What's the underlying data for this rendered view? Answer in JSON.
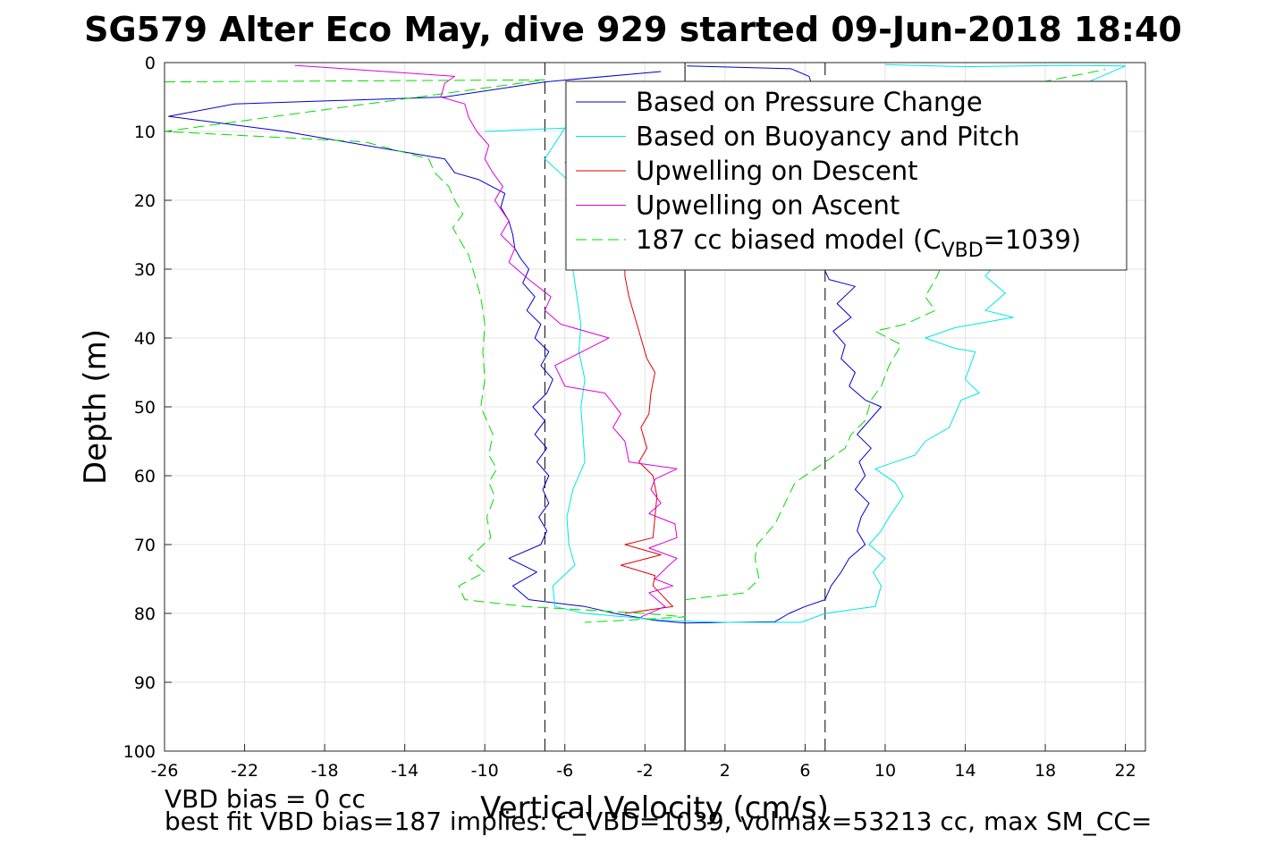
{
  "chart_data": {
    "type": "line",
    "title": "SG579 Alter Eco May, dive 929 started 09-Jun-2018 18:40",
    "xlabel": "Vertical Velocity (cm/s)",
    "ylabel": "Depth (m)",
    "xlim": [
      -26,
      23
    ],
    "ylim": [
      0,
      100
    ],
    "y_reversed": true,
    "grid": true,
    "xticks": [
      -26,
      -22,
      -18,
      -14,
      -10,
      -6,
      -2,
      2,
      6,
      10,
      14,
      18,
      22
    ],
    "yticks": [
      0,
      10,
      20,
      30,
      40,
      50,
      60,
      70,
      80,
      90,
      100
    ],
    "legend_position": "top-right",
    "legend": [
      {
        "label": "Based on Pressure Change",
        "color": "#0000cc",
        "dash": "solid"
      },
      {
        "label": "Based on Buoyancy and Pitch",
        "color": "#00e5e5",
        "dash": "solid"
      },
      {
        "label": "Upwelling on Descent",
        "color": "#e00000",
        "dash": "solid"
      },
      {
        "label": "Upwelling on Ascent",
        "color": "#dd00dd",
        "dash": "solid"
      },
      {
        "label_prefix": "187 cc biased model (C",
        "label_sub": "VBD",
        "label_suffix": "=1039)",
        "color": "#00dd00",
        "dash": "dashed"
      }
    ],
    "reference_lines": [
      {
        "x": -7,
        "style": "dashed",
        "color": "#000000"
      },
      {
        "x": 0,
        "style": "solid",
        "color": "#000000"
      },
      {
        "x": 7,
        "style": "dashed",
        "color": "#000000"
      }
    ],
    "series": [
      {
        "color": "#0000cc",
        "dash": "solid",
        "points": [
          [
            -1.2,
            1.3
          ],
          [
            -7,
            2.8
          ],
          [
            -12,
            5
          ],
          [
            -22.5,
            6
          ],
          [
            -25.8,
            7.8
          ],
          [
            -20,
            10
          ],
          [
            -16,
            12
          ],
          [
            -12,
            14
          ],
          [
            -11.5,
            16
          ],
          [
            -10.3,
            17
          ],
          [
            -9,
            19
          ],
          [
            -9.2,
            21
          ],
          [
            -8.8,
            23
          ],
          [
            -8.6,
            25
          ],
          [
            -8.5,
            27
          ],
          [
            -8.2,
            28.5
          ],
          [
            -7.8,
            30
          ],
          [
            -8.1,
            32
          ],
          [
            -7.5,
            34
          ],
          [
            -7.9,
            36
          ],
          [
            -7.2,
            38
          ],
          [
            -7.5,
            40
          ],
          [
            -6.8,
            42
          ],
          [
            -7.2,
            44
          ],
          [
            -6.6,
            46
          ],
          [
            -6.9,
            48
          ],
          [
            -7.6,
            50
          ],
          [
            -7,
            52
          ],
          [
            -7.5,
            54
          ],
          [
            -6.9,
            56
          ],
          [
            -7.4,
            58
          ],
          [
            -6.8,
            60
          ],
          [
            -7.1,
            62
          ],
          [
            -6.8,
            64
          ],
          [
            -7.3,
            66
          ],
          [
            -6.9,
            68
          ],
          [
            -7.2,
            70
          ],
          [
            -8.8,
            72
          ],
          [
            -7.4,
            74
          ],
          [
            -8.6,
            76
          ],
          [
            -7.8,
            78
          ],
          [
            -5,
            79
          ],
          [
            -3.5,
            80
          ],
          [
            -1.5,
            81
          ],
          [
            0,
            81.4
          ],
          [
            4.5,
            81.2
          ],
          [
            5.2,
            80
          ],
          [
            6,
            79
          ],
          [
            7,
            78
          ],
          [
            7.3,
            76
          ],
          [
            7.8,
            74
          ],
          [
            8.2,
            72
          ],
          [
            9,
            70
          ],
          [
            8.6,
            68
          ],
          [
            8.8,
            66
          ],
          [
            9.2,
            64
          ],
          [
            8.5,
            62
          ],
          [
            9,
            60
          ],
          [
            8.7,
            58
          ],
          [
            9.3,
            56
          ],
          [
            8.6,
            54
          ],
          [
            9.8,
            50
          ],
          [
            9,
            49
          ],
          [
            8.2,
            47
          ],
          [
            8.5,
            45
          ],
          [
            7.8,
            43
          ],
          [
            8,
            41
          ],
          [
            7.4,
            39
          ],
          [
            8.3,
            37
          ],
          [
            7.6,
            35
          ],
          [
            8.5,
            32.5
          ],
          [
            7.2,
            31.5
          ],
          [
            6.8,
            29
          ],
          [
            7.5,
            26
          ],
          [
            6.9,
            22
          ],
          [
            7.6,
            18
          ],
          [
            7.2,
            14
          ],
          [
            7.8,
            10
          ],
          [
            6.6,
            6
          ],
          [
            6.2,
            2
          ],
          [
            5.3,
            0.9
          ],
          [
            0.1,
            0.5
          ]
        ]
      },
      {
        "color": "#00e5e5",
        "dash": "solid",
        "points": [
          [
            -10,
            10
          ],
          [
            -6,
            9.5
          ],
          [
            -7,
            14
          ],
          [
            -5.5,
            18
          ],
          [
            -5.2,
            22
          ],
          [
            -5,
            26
          ],
          [
            -5.6,
            30
          ],
          [
            -5.4,
            34
          ],
          [
            -5.2,
            38
          ],
          [
            -5.3,
            42
          ],
          [
            -5,
            46
          ],
          [
            -5.2,
            50
          ],
          [
            -5.1,
            54
          ],
          [
            -5,
            58
          ],
          [
            -5.6,
            62
          ],
          [
            -5.9,
            66
          ],
          [
            -5.8,
            70
          ],
          [
            -5.5,
            73
          ],
          [
            -6.6,
            76
          ],
          [
            -6.5,
            79
          ],
          [
            -5,
            80
          ],
          [
            -1,
            81
          ],
          [
            2,
            81.3
          ],
          [
            5.8,
            81.3
          ],
          [
            7,
            80
          ],
          [
            9.5,
            79
          ],
          [
            9.8,
            76
          ],
          [
            9.4,
            74
          ],
          [
            10,
            72
          ],
          [
            9.2,
            70
          ],
          [
            9.8,
            68
          ],
          [
            10.2,
            66
          ],
          [
            10.9,
            63
          ],
          [
            10.5,
            61
          ],
          [
            9.5,
            59
          ],
          [
            11.5,
            57
          ],
          [
            12,
            55
          ],
          [
            13.2,
            53
          ],
          [
            13.8,
            49
          ],
          [
            14.7,
            48
          ],
          [
            14,
            46
          ],
          [
            14.5,
            42
          ],
          [
            13.5,
            41.5
          ],
          [
            12,
            40
          ],
          [
            13.5,
            38.5
          ],
          [
            16.4,
            37
          ],
          [
            15,
            36
          ],
          [
            16,
            33.5
          ],
          [
            15,
            31
          ],
          [
            16.2,
            27
          ],
          [
            15.5,
            22
          ],
          [
            16,
            18
          ],
          [
            17.5,
            12
          ],
          [
            18.5,
            6
          ],
          [
            20,
            3
          ],
          [
            22,
            0.5
          ],
          [
            19,
            0.4
          ],
          [
            14,
            0.6
          ],
          [
            10,
            0.3
          ]
        ]
      },
      {
        "color": "#e00000",
        "dash": "solid",
        "points": [
          [
            -6,
            14.5
          ],
          [
            -3.5,
            16
          ],
          [
            -3.8,
            19
          ],
          [
            -3.3,
            22
          ],
          [
            -3.5,
            25
          ],
          [
            -3,
            28
          ],
          [
            -3,
            31
          ],
          [
            -2.8,
            34
          ],
          [
            -2.5,
            37
          ],
          [
            -2.2,
            40
          ],
          [
            -1.9,
            43
          ],
          [
            -1.5,
            45
          ],
          [
            -1.7,
            48
          ],
          [
            -1.8,
            51
          ],
          [
            -2.2,
            53
          ],
          [
            -1.9,
            56
          ],
          [
            -2.3,
            58
          ],
          [
            -1.6,
            60
          ],
          [
            -1.4,
            63
          ],
          [
            -1.5,
            66
          ],
          [
            -1.6,
            69
          ],
          [
            -3,
            70
          ],
          [
            -1.2,
            71.5
          ],
          [
            -3.2,
            73
          ],
          [
            -1.5,
            74.5
          ],
          [
            -1.6,
            76
          ],
          [
            -0.6,
            79
          ],
          [
            -3,
            80
          ]
        ]
      },
      {
        "color": "#dd00dd",
        "dash": "solid",
        "points": [
          [
            -2.2,
            80.5
          ],
          [
            -1,
            79
          ],
          [
            -1.8,
            77
          ],
          [
            -0.6,
            76
          ],
          [
            -1.5,
            75
          ],
          [
            -0.8,
            73
          ],
          [
            -0.4,
            72
          ],
          [
            -1.8,
            70.5
          ],
          [
            -0.4,
            69
          ],
          [
            -0.5,
            67
          ],
          [
            -1.8,
            65.5
          ],
          [
            -1.2,
            64
          ],
          [
            -1.7,
            62
          ],
          [
            -1.5,
            60.5
          ],
          [
            -0.4,
            59
          ],
          [
            -2.8,
            58
          ],
          [
            -3,
            55
          ],
          [
            -3.6,
            53
          ],
          [
            -3.2,
            51
          ],
          [
            -4,
            48
          ],
          [
            -6,
            47
          ],
          [
            -6.5,
            44
          ],
          [
            -3.8,
            40
          ],
          [
            -6.2,
            38
          ],
          [
            -7,
            36
          ],
          [
            -6.7,
            34
          ],
          [
            -7.8,
            31.5
          ],
          [
            -8.8,
            29
          ],
          [
            -8.5,
            27
          ],
          [
            -9.2,
            25
          ],
          [
            -8.8,
            23
          ],
          [
            -9.5,
            20
          ],
          [
            -9.1,
            18
          ],
          [
            -9.6,
            16
          ],
          [
            -10,
            14
          ],
          [
            -9.8,
            12
          ],
          [
            -10.4,
            10
          ],
          [
            -10.8,
            8
          ],
          [
            -11,
            6
          ],
          [
            -12.2,
            5
          ],
          [
            -12,
            3
          ],
          [
            -11.5,
            2
          ],
          [
            -14,
            1.5
          ],
          [
            -19.5,
            0.4
          ]
        ]
      },
      {
        "color": "#00dd00",
        "dash": "dashed",
        "points": [
          [
            -26,
            2.8
          ],
          [
            -7,
            2.5
          ],
          [
            -26,
            10
          ],
          [
            -16,
            11.5
          ],
          [
            -12.8,
            14
          ],
          [
            -12.5,
            16
          ],
          [
            -11.8,
            18
          ],
          [
            -11.5,
            20
          ],
          [
            -11.1,
            22
          ],
          [
            -11.6,
            24
          ],
          [
            -11.2,
            26
          ],
          [
            -10.8,
            28
          ],
          [
            -10.5,
            31
          ],
          [
            -10.2,
            34
          ],
          [
            -10,
            38
          ],
          [
            -10.1,
            42
          ],
          [
            -10,
            46
          ],
          [
            -10.2,
            50
          ],
          [
            -9.6,
            54
          ],
          [
            -9.8,
            57
          ],
          [
            -9.4,
            59
          ],
          [
            -9.8,
            61
          ],
          [
            -9.5,
            63
          ],
          [
            -9.9,
            66
          ],
          [
            -9.7,
            69
          ],
          [
            -10.8,
            72
          ],
          [
            -10,
            74
          ],
          [
            -11.3,
            76
          ],
          [
            -11,
            78
          ],
          [
            -8,
            79
          ],
          [
            -5,
            79.5
          ],
          [
            -2,
            80
          ],
          [
            0,
            80.5
          ],
          [
            -3,
            81
          ],
          [
            -5,
            81.3
          ]
        ]
      },
      {
        "color": "#00dd00",
        "dash": "dashed",
        "points": [
          [
            0,
            78
          ],
          [
            3,
            77
          ],
          [
            3.7,
            75
          ],
          [
            3.5,
            72
          ],
          [
            3.6,
            70
          ],
          [
            4.5,
            67
          ],
          [
            5,
            64
          ],
          [
            5.5,
            61
          ],
          [
            7,
            58
          ],
          [
            8,
            56
          ],
          [
            8.3,
            54
          ],
          [
            9,
            52
          ],
          [
            9.3,
            49
          ],
          [
            9.8,
            47
          ],
          [
            10.2,
            44
          ],
          [
            10.8,
            41
          ],
          [
            9.5,
            39
          ],
          [
            11,
            38
          ],
          [
            12.5,
            36
          ],
          [
            12,
            34
          ],
          [
            12.6,
            31
          ],
          [
            13,
            28
          ],
          [
            13.5,
            24
          ],
          [
            13.2,
            20
          ],
          [
            14,
            15
          ],
          [
            14.5,
            10
          ],
          [
            15.5,
            6
          ],
          [
            17.5,
            3
          ],
          [
            21,
            1
          ]
        ]
      }
    ]
  },
  "annotations": {
    "line1": "VBD bias = 0 cc",
    "line2": "best fit VBD bias=187 implies: C_VBD=1039, volmax=53213 cc, max SM_CC="
  }
}
